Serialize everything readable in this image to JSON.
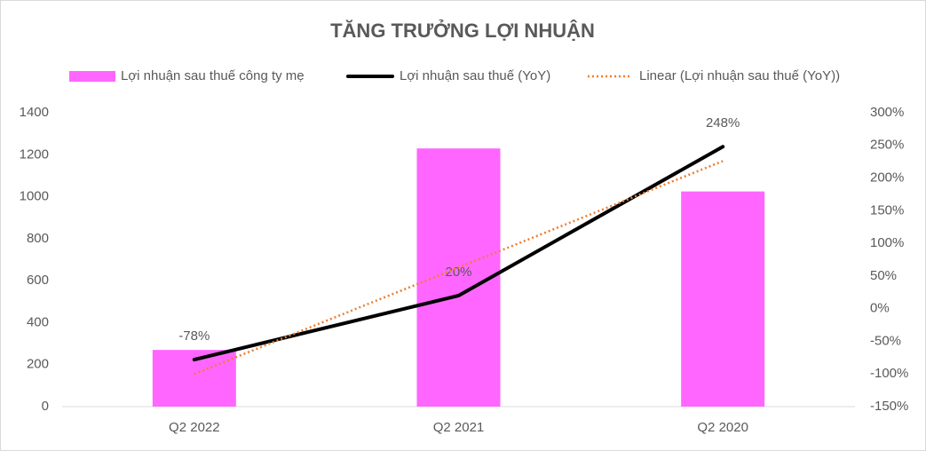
{
  "chart_data": {
    "type": "bar",
    "title": "TĂNG TRƯỞNG LỢI NHUẬN",
    "categories": [
      "Q2 2022",
      "Q2 2021",
      "Q2 2020"
    ],
    "series": [
      {
        "name": "Lợi nhuận sau thuế công ty mẹ",
        "type": "bar",
        "color": "#ff66ff",
        "values": [
          270,
          1230,
          1025
        ]
      },
      {
        "name": "Lợi nhuận sau thuế (YoY)",
        "type": "line",
        "axis": "y2",
        "color": "#000000",
        "values": [
          -78,
          20,
          248
        ],
        "value_labels": [
          "-78%",
          "20%",
          "248%"
        ]
      },
      {
        "name": "Linear (Lợi nhuận sau thuế (YoY))",
        "type": "trend",
        "axis": "y2",
        "color": "#ed7d31",
        "values": [
          -100,
          63,
          226
        ]
      }
    ],
    "ylim": [
      0,
      1400
    ],
    "yticks": [
      0,
      200,
      400,
      600,
      800,
      1000,
      1200,
      1400
    ],
    "y2lim": [
      -150,
      300
    ],
    "y2ticks": [
      {
        "value": -150,
        "label": "-150%"
      },
      {
        "value": -100,
        "label": "-100%"
      },
      {
        "value": -50,
        "label": "-50%"
      },
      {
        "value": 0,
        "label": "0%"
      },
      {
        "value": 50,
        "label": "50%"
      },
      {
        "value": 100,
        "label": "100%"
      },
      {
        "value": 150,
        "label": "150%"
      },
      {
        "value": 200,
        "label": "200%"
      },
      {
        "value": 250,
        "label": "250%"
      },
      {
        "value": 300,
        "label": "300%"
      }
    ],
    "legend": "top",
    "grid": false
  }
}
